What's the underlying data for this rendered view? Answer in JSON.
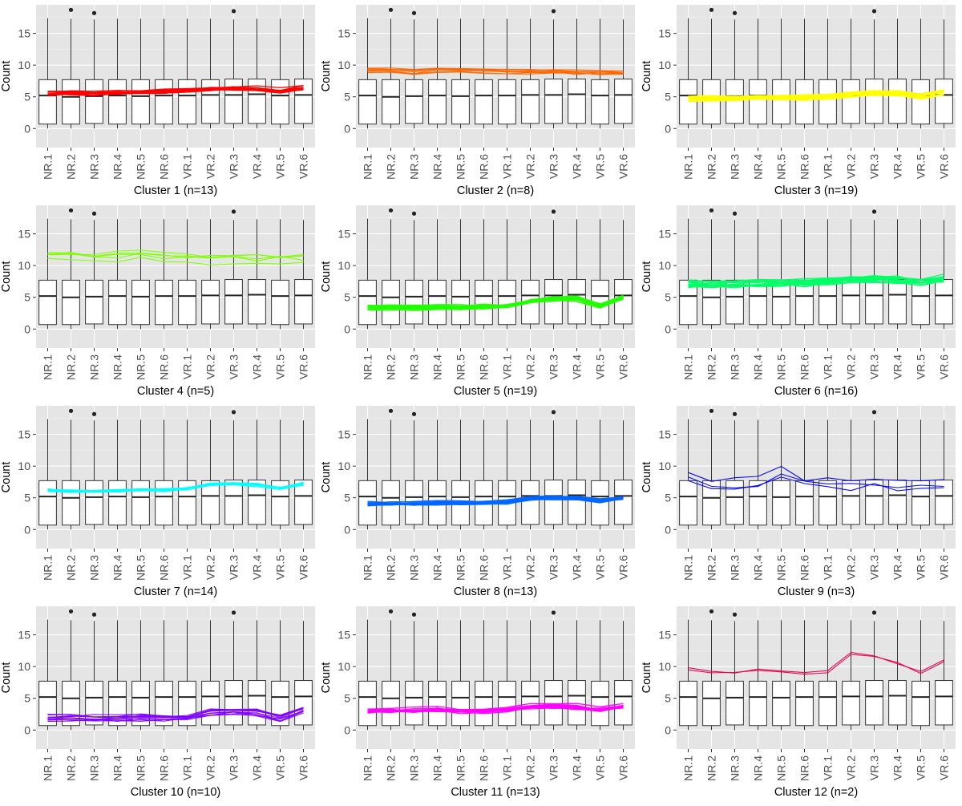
{
  "figure": {
    "ylabel": "Count",
    "categories": [
      "NR.1",
      "NR.2",
      "NR.3",
      "NR.4",
      "NR.5",
      "NR.6",
      "VR.1",
      "VR.2",
      "VR.3",
      "VR.4",
      "VR.5",
      "VR.6"
    ],
    "yticks": [
      0,
      5,
      10,
      15
    ],
    "ylim": [
      -3,
      19.5
    ],
    "grid": true,
    "panel_background": "#e5e5e5",
    "grid_color": "#ffffff"
  },
  "chart_data": [
    {
      "type": "box",
      "title": "Cluster 1 (n=13)",
      "color": "#ff0000",
      "profile": "flat",
      "base": [
        5.6,
        5.7,
        5.6,
        5.7,
        5.8,
        5.9,
        6.1,
        6.3,
        6.4,
        6.3,
        6.0,
        6.5
      ],
      "spread": 0.6
    },
    {
      "type": "box",
      "title": "Cluster 2 (n=8)",
      "color": "#ff6600",
      "profile": "flat",
      "base": [
        9.1,
        9.2,
        9.0,
        9.3,
        9.2,
        9.1,
        9.0,
        8.9,
        8.9,
        8.9,
        8.8,
        8.7
      ],
      "spread": 0.6
    },
    {
      "type": "box",
      "title": "Cluster 3 (n=19)",
      "color": "#ffff00",
      "profile": "flat",
      "base": [
        4.7,
        4.7,
        4.7,
        4.8,
        4.8,
        4.9,
        5.0,
        5.4,
        5.6,
        5.6,
        5.1,
        5.7
      ],
      "spread": 0.6
    },
    {
      "type": "box",
      "title": "Cluster 4 (n=5)",
      "color": "#80ff00",
      "profile": "flat",
      "base": [
        11.5,
        11.5,
        11.3,
        11.4,
        11.5,
        11.3,
        11.2,
        10.9,
        11.0,
        10.9,
        11.0,
        10.9
      ],
      "spread": 1.2
    },
    {
      "type": "box",
      "title": "Cluster 5 (n=19)",
      "color": "#22ff00",
      "profile": "flat",
      "base": [
        3.4,
        3.4,
        3.3,
        3.4,
        3.4,
        3.5,
        3.5,
        4.3,
        4.7,
        4.8,
        3.7,
        5.0
      ],
      "spread": 0.6
    },
    {
      "type": "box",
      "title": "Cluster 6 (n=16)",
      "color": "#00ff66",
      "profile": "flat",
      "base": [
        7.1,
        7.1,
        7.2,
        7.3,
        7.4,
        7.4,
        7.6,
        7.9,
        7.9,
        7.9,
        7.5,
        8.0
      ],
      "spread": 1.0
    },
    {
      "type": "box",
      "title": "Cluster 7 (n=14)",
      "color": "#00ffff",
      "profile": "flat",
      "base": [
        6.2,
        6.0,
        6.0,
        6.1,
        6.2,
        6.2,
        6.4,
        7.1,
        7.2,
        7.0,
        6.5,
        7.2
      ],
      "spread": 0.4
    },
    {
      "type": "box",
      "title": "Cluster 8 (n=13)",
      "color": "#0066ff",
      "profile": "flat",
      "base": [
        4.1,
        4.1,
        4.1,
        4.2,
        4.2,
        4.3,
        4.4,
        5.0,
        5.0,
        5.0,
        4.5,
        5.1
      ],
      "spread": 0.5
    },
    {
      "type": "box",
      "title": "Cluster 9 (n=3)",
      "color": "#0000ff",
      "profile": "flat",
      "base": [
        8.8,
        7.5,
        7.0,
        7.2,
        9.0,
        7.5,
        7.0,
        7.2,
        7.4,
        7.0,
        7.4,
        6.7
      ],
      "spread": 1.8
    },
    {
      "type": "box",
      "title": "Cluster 10 (n=10)",
      "color": "#7f00ff",
      "profile": "flat",
      "base": [
        1.9,
        2.0,
        1.9,
        1.9,
        1.9,
        1.9,
        2.0,
        2.8,
        3.0,
        2.8,
        1.9,
        3.2
      ],
      "spread": 0.8
    },
    {
      "type": "box",
      "title": "Cluster 11 (n=13)",
      "color": "#ff00ff",
      "profile": "flat",
      "base": [
        3.0,
        3.1,
        3.0,
        3.2,
        3.0,
        3.0,
        3.2,
        3.6,
        3.7,
        3.6,
        3.2,
        3.7
      ],
      "spread": 0.8
    },
    {
      "type": "box",
      "title": "Cluster 12 (n=2)",
      "color": "#e6004c",
      "profile": "flat",
      "base": [
        9.8,
        9.2,
        9.3,
        9.6,
        9.3,
        9.2,
        9.3,
        12.2,
        12.0,
        10.7,
        9.2,
        11.0
      ],
      "spread": 0.6
    }
  ],
  "box_stats": {
    "lower_whisker": [
      0,
      0,
      0,
      0,
      0,
      0,
      0,
      0,
      0,
      0,
      0,
      0
    ],
    "q1": [
      0.7,
      0.7,
      0.8,
      0.7,
      0.7,
      0.7,
      0.7,
      0.8,
      0.8,
      0.8,
      0.7,
      0.8
    ],
    "median": [
      5.2,
      5.0,
      5.1,
      5.2,
      5.1,
      5.2,
      5.2,
      5.3,
      5.3,
      5.4,
      5.2,
      5.3
    ],
    "q3": [
      7.7,
      7.7,
      7.7,
      7.7,
      7.7,
      7.7,
      7.7,
      7.7,
      7.8,
      7.8,
      7.7,
      7.8
    ],
    "upper_whisker": [
      17.4,
      17.3,
      17.2,
      17.3,
      17.3,
      17.3,
      17.3,
      17.3,
      17.2,
      17.3,
      17.3,
      17.2
    ],
    "outliers": [
      [],
      [
        18.7
      ],
      [
        18.2
      ],
      [],
      [],
      [],
      [],
      [],
      [
        18.5
      ],
      [],
      [],
      []
    ]
  }
}
